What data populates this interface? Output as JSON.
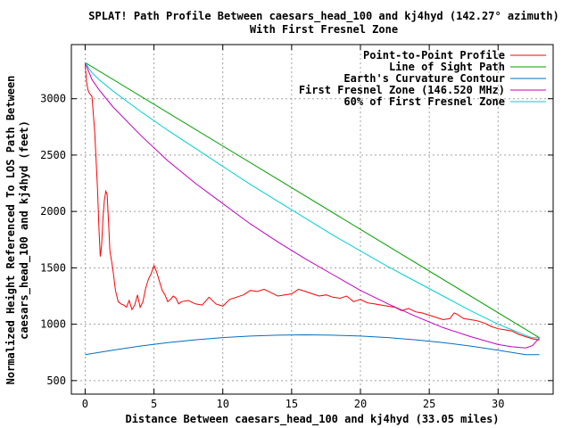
{
  "chart_data": {
    "type": "line",
    "title": "SPLAT! Path Profile Between caesars_head_100 and kj4hyd (142.27° azimuth)",
    "subtitle": "With First Fresnel Zone",
    "xlabel": "Distance Between caesars_head_100 and kj4hyd (33.05 miles)",
    "ylabel": "Normalized Height Referenced To LOS Path Between caesars_head_100 and kj4hyd (feet)",
    "ylabel_lines": [
      "Normalized Height Referenced To LOS Path Between",
      "caesars_head_100 and kj4hyd (feet)"
    ],
    "xlim": [
      -1,
      34
    ],
    "ylim": [
      380,
      3480
    ],
    "xticks": [
      0,
      5,
      10,
      15,
      20,
      25,
      30
    ],
    "yticks": [
      500,
      1000,
      1500,
      2000,
      2500,
      3000
    ],
    "grid": true,
    "legend_position": "top-right",
    "series": [
      {
        "name": "Point-to-Point Profile",
        "color": "#ff0000",
        "x": [
          0,
          0.1,
          0.2,
          0.3,
          0.5,
          0.7,
          0.9,
          1.0,
          1.1,
          1.2,
          1.3,
          1.4,
          1.5,
          1.6,
          1.7,
          1.8,
          2.0,
          2.2,
          2.4,
          2.6,
          2.8,
          3.0,
          3.2,
          3.4,
          3.6,
          3.8,
          4.0,
          4.2,
          4.4,
          4.6,
          4.8,
          5.0,
          5.2,
          5.4,
          5.6,
          5.8,
          6.0,
          6.2,
          6.4,
          6.6,
          6.8,
          7.0,
          7.5,
          8.0,
          8.5,
          9.0,
          9.5,
          10.0,
          10.5,
          11.0,
          11.5,
          12.0,
          12.5,
          13.0,
          13.5,
          14.0,
          14.5,
          15.0,
          15.5,
          16.0,
          16.5,
          17.0,
          17.5,
          18.0,
          18.5,
          19.0,
          19.5,
          20.0,
          20.5,
          21.0,
          21.5,
          22.0,
          22.5,
          23.0,
          23.5,
          24.0,
          24.5,
          25.0,
          25.5,
          26.0,
          26.5,
          26.8,
          27.0,
          27.5,
          28.0,
          28.5,
          29.0,
          29.5,
          30.0,
          30.5,
          31.0,
          31.5,
          32.0,
          32.5,
          33.0
        ],
        "y": [
          3310,
          3150,
          3080,
          3050,
          3020,
          2700,
          2200,
          1850,
          1600,
          1700,
          1950,
          2100,
          2180,
          2150,
          1900,
          1650,
          1500,
          1300,
          1200,
          1180,
          1170,
          1150,
          1210,
          1130,
          1170,
          1260,
          1150,
          1200,
          1320,
          1400,
          1450,
          1520,
          1460,
          1380,
          1300,
          1260,
          1200,
          1220,
          1250,
          1230,
          1180,
          1200,
          1210,
          1180,
          1170,
          1240,
          1180,
          1160,
          1220,
          1240,
          1260,
          1300,
          1290,
          1310,
          1280,
          1250,
          1260,
          1270,
          1310,
          1290,
          1270,
          1250,
          1260,
          1240,
          1230,
          1250,
          1200,
          1220,
          1190,
          1180,
          1170,
          1160,
          1150,
          1120,
          1140,
          1110,
          1100,
          1080,
          1060,
          1040,
          1050,
          1100,
          1090,
          1050,
          1040,
          1030,
          1010,
          980,
          960,
          950,
          940,
          910,
          890,
          870,
          860
        ]
      },
      {
        "name": "Line of Sight Path",
        "color": "#00a000",
        "x": [
          0,
          33
        ],
        "y": [
          3320,
          880
        ]
      },
      {
        "name": "Earth's Curvature Contour",
        "color": "#0070c0",
        "x": [
          0,
          2,
          4,
          6,
          8,
          10,
          12,
          14,
          16,
          18,
          20,
          22,
          24,
          26,
          28,
          30,
          32,
          33
        ],
        "y": [
          730,
          770,
          806,
          837,
          862,
          881,
          895,
          903,
          906,
          903,
          895,
          881,
          862,
          837,
          806,
          770,
          730,
          730
        ]
      },
      {
        "name": "First Fresnel Zone (146.520 MHz)",
        "color": "#c000c0",
        "x": [
          0,
          0.5,
          1,
          2,
          4,
          6,
          8,
          10,
          12,
          14,
          16,
          18,
          20,
          22,
          24,
          26,
          28,
          30,
          31,
          32,
          32.5,
          33
        ],
        "y": [
          3320,
          3170,
          3080,
          2930,
          2680,
          2450,
          2250,
          2070,
          1890,
          1730,
          1580,
          1440,
          1300,
          1180,
          1070,
          970,
          890,
          820,
          800,
          790,
          810,
          880
        ]
      },
      {
        "name": "60% of First Fresnel Zone",
        "color": "#00d0d0",
        "x": [
          0,
          0.5,
          1,
          2,
          4,
          6,
          8,
          10,
          12,
          14,
          16,
          18,
          20,
          22,
          24,
          26,
          28,
          30,
          31,
          32,
          32.5,
          33
        ],
        "y": [
          3320,
          3230,
          3170,
          3070,
          2890,
          2720,
          2560,
          2400,
          2240,
          2090,
          1940,
          1790,
          1650,
          1510,
          1380,
          1250,
          1120,
          1000,
          950,
          900,
          880,
          880
        ]
      }
    ]
  }
}
